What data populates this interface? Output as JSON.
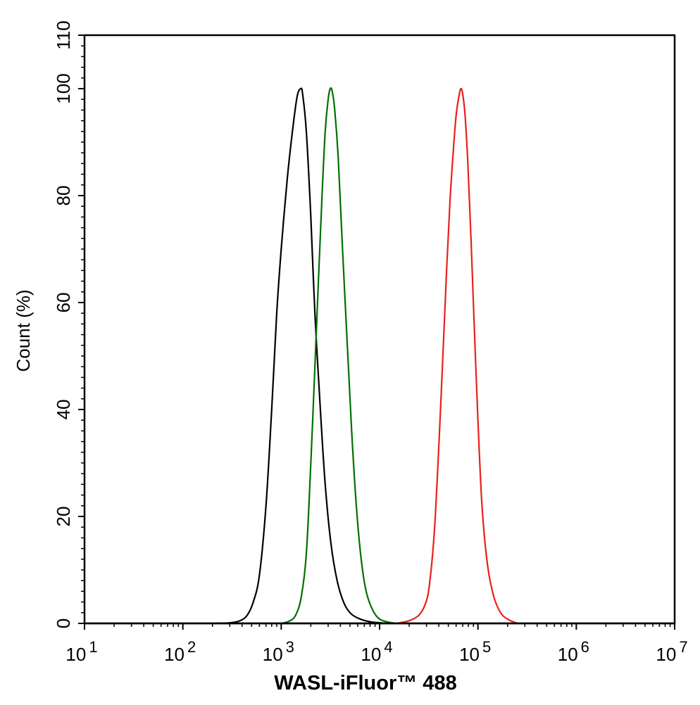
{
  "chart_data": {
    "type": "line",
    "title": "",
    "xlabel": "WASL-iFluor™ 488",
    "ylabel": "Count  (%)",
    "x_scale": "log",
    "xlim": [
      10,
      10000000
    ],
    "ylim": [
      0,
      110
    ],
    "grid": false,
    "legend": "none",
    "x_ticks": [
      {
        "base": "10",
        "exp": "1"
      },
      {
        "base": "10",
        "exp": "2"
      },
      {
        "base": "10",
        "exp": "3"
      },
      {
        "base": "10",
        "exp": "4"
      },
      {
        "base": "10",
        "exp": "5"
      },
      {
        "base": "10",
        "exp": "6"
      },
      {
        "base": "10",
        "exp": "7"
      }
    ],
    "y_ticks": [
      "0",
      "20",
      "40",
      "60",
      "80",
      "100",
      "110"
    ],
    "series": [
      {
        "color": "#000000",
        "points": [
          [
            200,
            0
          ],
          [
            300,
            0.1
          ],
          [
            380,
            0.5
          ],
          [
            450,
            1.5
          ],
          [
            520,
            4
          ],
          [
            600,
            9
          ],
          [
            700,
            22
          ],
          [
            800,
            40
          ],
          [
            900,
            58
          ],
          [
            1000,
            70
          ],
          [
            1150,
            83
          ],
          [
            1300,
            92
          ],
          [
            1450,
            98.5
          ],
          [
            1580,
            100
          ],
          [
            1650,
            99
          ],
          [
            1800,
            92
          ],
          [
            2000,
            76
          ],
          [
            2200,
            58
          ],
          [
            2500,
            40
          ],
          [
            2800,
            26
          ],
          [
            3200,
            15
          ],
          [
            3700,
            8
          ],
          [
            4300,
            4
          ],
          [
            5000,
            2
          ],
          [
            6000,
            1
          ],
          [
            8000,
            0.3
          ],
          [
            12000,
            0
          ]
        ]
      },
      {
        "color": "#007000",
        "points": [
          [
            1000,
            0
          ],
          [
            1200,
            0.4
          ],
          [
            1400,
            1.5
          ],
          [
            1600,
            5
          ],
          [
            1800,
            13
          ],
          [
            2000,
            30
          ],
          [
            2200,
            48
          ],
          [
            2400,
            65
          ],
          [
            2600,
            80
          ],
          [
            2800,
            92
          ],
          [
            3000,
            98
          ],
          [
            3150,
            100
          ],
          [
            3300,
            99.5
          ],
          [
            3500,
            96
          ],
          [
            3800,
            87
          ],
          [
            4200,
            70
          ],
          [
            4700,
            52
          ],
          [
            5200,
            36
          ],
          [
            5800,
            22
          ],
          [
            6500,
            12
          ],
          [
            7300,
            6
          ],
          [
            8500,
            2.5
          ],
          [
            10000,
            0.8
          ],
          [
            12500,
            0.2
          ],
          [
            15000,
            0
          ]
        ]
      },
      {
        "color": "#e8201c",
        "points": [
          [
            15000,
            0
          ],
          [
            20000,
            0.5
          ],
          [
            25000,
            1.5
          ],
          [
            29000,
            3.5
          ],
          [
            32000,
            7
          ],
          [
            36000,
            17
          ],
          [
            40000,
            33
          ],
          [
            44000,
            50
          ],
          [
            48000,
            66
          ],
          [
            52000,
            79
          ],
          [
            56000,
            88
          ],
          [
            60000,
            95
          ],
          [
            64000,
            98.5
          ],
          [
            67000,
            100
          ],
          [
            70000,
            99
          ],
          [
            74000,
            95
          ],
          [
            79000,
            86
          ],
          [
            85000,
            72
          ],
          [
            92000,
            55
          ],
          [
            100000,
            38
          ],
          [
            110000,
            22
          ],
          [
            125000,
            11
          ],
          [
            145000,
            5
          ],
          [
            170000,
            2
          ],
          [
            200000,
            0.8
          ],
          [
            250000,
            0
          ]
        ]
      }
    ]
  }
}
